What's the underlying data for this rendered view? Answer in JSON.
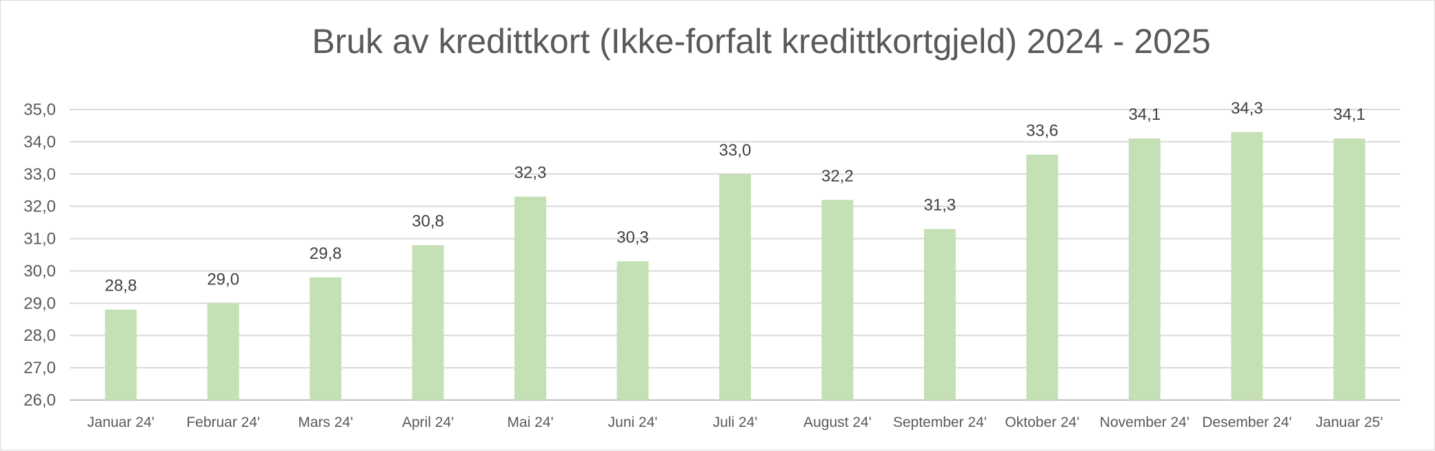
{
  "chart_data": {
    "type": "bar",
    "title": "Bruk av kredittkort (Ikke-forfalt kredittkortgjeld) 2024 - 2025",
    "categories": [
      "Januar 24'",
      "Februar 24'",
      "Mars 24'",
      "April 24'",
      "Mai 24'",
      "Juni 24'",
      "Juli 24'",
      "August 24'",
      "September 24'",
      "Oktober 24'",
      "November 24'",
      "Desember 24'",
      "Januar 25'"
    ],
    "values": [
      28.8,
      29.0,
      29.8,
      30.8,
      32.3,
      30.3,
      33.0,
      32.2,
      31.3,
      33.6,
      34.1,
      34.3,
      34.1
    ],
    "data_labels": [
      "28,8",
      "29,0",
      "29,8",
      "30,8",
      "32,3",
      "30,3",
      "33,0",
      "32,2",
      "31,3",
      "33,6",
      "34,1",
      "34,3",
      "34,1"
    ],
    "yticks": [
      "26,0",
      "27,0",
      "28,0",
      "29,0",
      "30,0",
      "31,0",
      "32,0",
      "33,0",
      "34,0",
      "35,0"
    ],
    "ylim": [
      26,
      35
    ],
    "xlabel": "",
    "ylabel": "",
    "grid": true,
    "legend": "none",
    "bar_color": "#c5e0b4"
  }
}
